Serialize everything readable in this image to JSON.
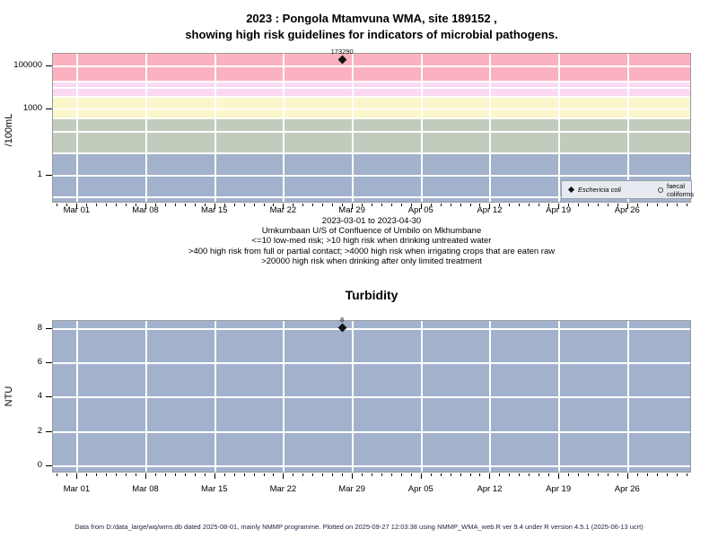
{
  "header": {
    "title_line1": "2023 : Pongola Mtamvuna WMA, site 189152 ,",
    "title_line2": "showing high risk guidelines for indicators of microbial pathogens."
  },
  "subtitle_lines": [
    "2023-03-01 to 2023-04-30",
    "Umkumbaan U/S of Confluence of Umbilo on Mkhumbane",
    "<=10 low-med risk; >10 high risk when drinking untreated water",
    ">400 high risk from full or partial contact; >4000 high risk when irrigating crops that are eaten raw",
    ">20000 high risk when drinking after only limited treatment"
  ],
  "footer": {
    "text": "Data from D:/data_large/wq/wms.db dated 2025-08-01, mainly NMMP programme. Plotted on 2025-09-27 12:03:38 using NMMP_WMA_web.R ver 9.4 under R version 4.5.1 (2025-06-13 ucrt)"
  },
  "colors": {
    "grid": "#ffffff",
    "point": "#141414",
    "band_pink": "#fbb1bf",
    "band_violet": "#fad9f3",
    "band_yellow": "#fbf7cb",
    "band_green": "#c2ccbc",
    "band_blue": "#a2b2cc",
    "legend_bg": "#e7eaf0",
    "plot_border": "#9a9a9a"
  },
  "chart_data": [
    {
      "type": "scatter",
      "title": "",
      "ylabel": "/100mL",
      "yscale": "log",
      "ylim": [
        0.052,
        364000
      ],
      "yticks": [
        1,
        1000,
        100000
      ],
      "ytick_labels": [
        "1",
        "1000",
        "100000"
      ],
      "ygrid": [
        0.1,
        1,
        10,
        100,
        400,
        1000,
        4000,
        10000,
        20000,
        100000
      ],
      "x_axis": {
        "range_label": "2023-03-01 to 2023-04-30",
        "tick_labels": [
          "Mar 01",
          "Mar 08",
          "Mar 15",
          "Mar 22",
          "Mar 29",
          "Apr 05",
          "Apr 12",
          "Apr 19",
          "Apr 26"
        ],
        "tick_days": [
          0,
          7,
          14,
          21,
          28,
          35,
          42,
          49,
          56
        ],
        "minor_tick_every_days": 1,
        "day_min": -2.5,
        "day_max": 62.5
      },
      "risk_bands": [
        {
          "range": [
            20000,
            364000
          ],
          "color": "#fbb1bf",
          "meaning": ">20000 high risk when drinking after only limited treatment"
        },
        {
          "range": [
            4000,
            20000
          ],
          "color": "#fad9f3",
          "meaning": ">4000 high risk when irrigating crops that are eaten raw"
        },
        {
          "range": [
            400,
            4000
          ],
          "color": "#fbf7cb",
          "meaning": ">400 high risk from full or partial contact"
        },
        {
          "range": [
            10,
            400
          ],
          "color": "#c2ccbc",
          "meaning": ">10 high risk when drinking untreated water"
        },
        {
          "range": [
            0.052,
            10
          ],
          "color": "#a2b2cc",
          "meaning": "<=10 low-med risk"
        }
      ],
      "series": [
        {
          "name": "Eschericia coli",
          "symbol": "filled-diamond",
          "points": [
            {
              "x_day": 27,
              "x_date": "2023-03-28",
              "y": 173290,
              "label": "173290"
            }
          ]
        },
        {
          "name": "faecal coliforms",
          "symbol": "open-circle",
          "points": []
        }
      ],
      "legend": {
        "position": "bottom-right",
        "items": [
          {
            "symbol": "filled-diamond",
            "label": "Eschericia coli"
          },
          {
            "symbol": "open-circle",
            "label": "faecal coliforms"
          }
        ]
      }
    },
    {
      "type": "scatter",
      "title": "Turbidity",
      "ylabel": "NTU",
      "yscale": "linear",
      "ylim": [
        -0.4,
        8.45
      ],
      "yticks": [
        0,
        2,
        4,
        6,
        8
      ],
      "ytick_labels": [
        "0",
        "2",
        "4",
        "6",
        "8"
      ],
      "ygrid": [
        0,
        2,
        4,
        6,
        8
      ],
      "background_color": "#a2b2cc",
      "x_axis": {
        "tick_labels": [
          "Mar 01",
          "Mar 08",
          "Mar 15",
          "Mar 22",
          "Mar 29",
          "Apr 05",
          "Apr 12",
          "Apr 19",
          "Apr 26"
        ],
        "tick_days": [
          0,
          7,
          14,
          21,
          28,
          35,
          42,
          49,
          56
        ],
        "minor_tick_every_days": 1,
        "day_min": -2.5,
        "day_max": 62.5
      },
      "series": [
        {
          "name": "Turbidity",
          "symbol": "filled-diamond",
          "points": [
            {
              "x_day": 27,
              "x_date": "2023-03-28",
              "y": 8,
              "label": "8"
            }
          ]
        }
      ]
    }
  ]
}
